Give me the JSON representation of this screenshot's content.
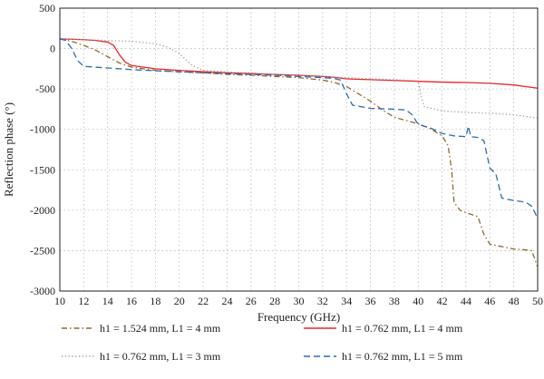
{
  "chart_data": {
    "type": "line",
    "title": "",
    "xlabel": "Frequency (GHz)",
    "ylabel": "Reflection phase (°)",
    "xlim": [
      10,
      50
    ],
    "ylim": [
      -3000,
      500
    ],
    "x_ticks": [
      "10",
      "12",
      "14",
      "16",
      "18",
      "20",
      "22",
      "24",
      "26",
      "28",
      "30",
      "32",
      "34",
      "36",
      "38",
      "40",
      "42",
      "44",
      "46",
      "48",
      "50"
    ],
    "y_ticks": [
      "500",
      "0",
      "-500",
      "-1000",
      "-1500",
      "-2000",
      "-2500",
      "-3000"
    ],
    "grid": true,
    "legend_position": "bottom",
    "series": [
      {
        "name": "h1 = 1.524 mm, L1 = 4 mm",
        "color": "#8b6b2a",
        "dash": "dash-dot",
        "points": [
          [
            10,
            120
          ],
          [
            11,
            90
          ],
          [
            12,
            40
          ],
          [
            13,
            -20
          ],
          [
            14,
            -100
          ],
          [
            15,
            -180
          ],
          [
            16,
            -230
          ],
          [
            18,
            -270
          ],
          [
            20,
            -290
          ],
          [
            22,
            -300
          ],
          [
            24,
            -320
          ],
          [
            26,
            -330
          ],
          [
            28,
            -345
          ],
          [
            30,
            -360
          ],
          [
            32,
            -390
          ],
          [
            33,
            -420
          ],
          [
            34,
            -470
          ],
          [
            35,
            -560
          ],
          [
            36,
            -650
          ],
          [
            37,
            -760
          ],
          [
            38,
            -850
          ],
          [
            40,
            -930
          ],
          [
            41,
            -990
          ],
          [
            42,
            -1080
          ],
          [
            42.5,
            -1200
          ],
          [
            42.8,
            -1500
          ],
          [
            43,
            -1900
          ],
          [
            43.5,
            -2000
          ],
          [
            44,
            -2030
          ],
          [
            45,
            -2080
          ],
          [
            45.5,
            -2300
          ],
          [
            46,
            -2420
          ],
          [
            47,
            -2450
          ],
          [
            48,
            -2480
          ],
          [
            49,
            -2490
          ],
          [
            49.5,
            -2500
          ],
          [
            50,
            -2700
          ]
        ]
      },
      {
        "name": "h1 = 0.762 mm, L1 = 4 mm",
        "color": "#e8262a",
        "dash": "solid",
        "points": [
          [
            10,
            120
          ],
          [
            12,
            110
          ],
          [
            13,
            100
          ],
          [
            14,
            80
          ],
          [
            14.5,
            40
          ],
          [
            15,
            -80
          ],
          [
            15.5,
            -170
          ],
          [
            16,
            -210
          ],
          [
            18,
            -250
          ],
          [
            20,
            -270
          ],
          [
            22,
            -285
          ],
          [
            24,
            -300
          ],
          [
            26,
            -310
          ],
          [
            28,
            -320
          ],
          [
            30,
            -330
          ],
          [
            32,
            -345
          ],
          [
            33,
            -355
          ],
          [
            34,
            -375
          ],
          [
            36,
            -385
          ],
          [
            38,
            -395
          ],
          [
            40,
            -405
          ],
          [
            42,
            -415
          ],
          [
            44,
            -420
          ],
          [
            46,
            -430
          ],
          [
            48,
            -450
          ],
          [
            49,
            -470
          ],
          [
            50,
            -490
          ]
        ]
      },
      {
        "name": "h1 = 0.762 mm, L1 = 3 mm",
        "color": "#9b9b9b",
        "dash": "dotted",
        "points": [
          [
            10,
            120
          ],
          [
            12,
            110
          ],
          [
            14,
            100
          ],
          [
            16,
            90
          ],
          [
            18,
            60
          ],
          [
            19,
            20
          ],
          [
            20,
            -60
          ],
          [
            21,
            -200
          ],
          [
            22,
            -270
          ],
          [
            24,
            -290
          ],
          [
            26,
            -300
          ],
          [
            28,
            -320
          ],
          [
            30,
            -330
          ],
          [
            32,
            -345
          ],
          [
            34,
            -360
          ],
          [
            36,
            -375
          ],
          [
            38,
            -385
          ],
          [
            40,
            -400
          ],
          [
            40.2,
            -560
          ],
          [
            40.5,
            -720
          ],
          [
            42,
            -770
          ],
          [
            44,
            -790
          ],
          [
            46,
            -800
          ],
          [
            48,
            -820
          ],
          [
            50,
            -860
          ]
        ]
      },
      {
        "name": "h1 = 0.762 mm, L1 = 5 mm",
        "color": "#2b6db0",
        "dash": "dashed",
        "points": [
          [
            10,
            120
          ],
          [
            10.5,
            100
          ],
          [
            11,
            0
          ],
          [
            11.5,
            -150
          ],
          [
            12,
            -220
          ],
          [
            14,
            -240
          ],
          [
            16,
            -260
          ],
          [
            18,
            -275
          ],
          [
            20,
            -285
          ],
          [
            22,
            -300
          ],
          [
            24,
            -310
          ],
          [
            26,
            -320
          ],
          [
            28,
            -330
          ],
          [
            30,
            -345
          ],
          [
            32,
            -360
          ],
          [
            33,
            -370
          ],
          [
            33.5,
            -390
          ],
          [
            34,
            -560
          ],
          [
            34.5,
            -700
          ],
          [
            36,
            -740
          ],
          [
            38,
            -750
          ],
          [
            39,
            -760
          ],
          [
            39.5,
            -820
          ],
          [
            40,
            -940
          ],
          [
            41,
            -980
          ],
          [
            42,
            -1050
          ],
          [
            43,
            -1080
          ],
          [
            44,
            -1090
          ],
          [
            44.2,
            -960
          ],
          [
            44.4,
            -1090
          ],
          [
            45,
            -1100
          ],
          [
            45.5,
            -1140
          ],
          [
            46,
            -1480
          ],
          [
            46.5,
            -1550
          ],
          [
            47,
            -1850
          ],
          [
            48,
            -1880
          ],
          [
            49,
            -1900
          ],
          [
            49.5,
            -1950
          ],
          [
            50,
            -2100
          ]
        ]
      }
    ]
  }
}
